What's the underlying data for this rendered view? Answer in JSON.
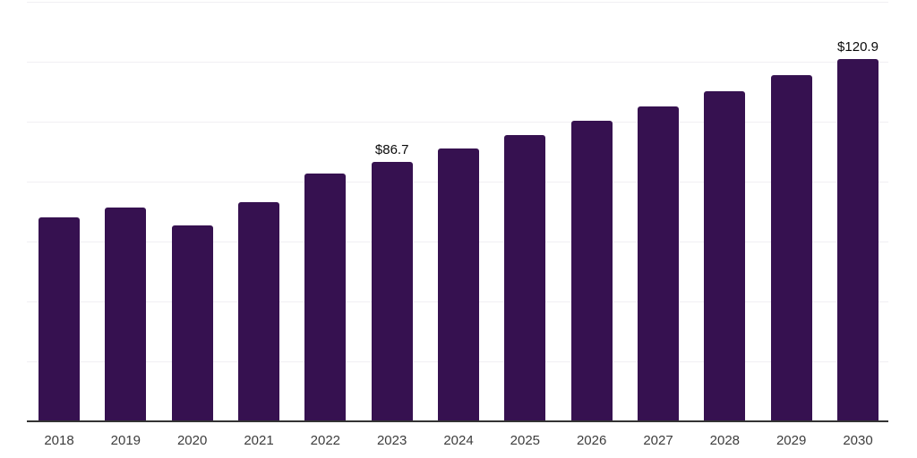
{
  "chart_data": {
    "type": "bar",
    "title": "",
    "xlabel": "",
    "ylabel": "",
    "categories": [
      "2018",
      "2019",
      "2020",
      "2021",
      "2022",
      "2023",
      "2024",
      "2025",
      "2026",
      "2027",
      "2028",
      "2029",
      "2030"
    ],
    "values": [
      68.1,
      71.3,
      65.4,
      73.1,
      82.7,
      86.7,
      91.0,
      95.5,
      100.3,
      105.1,
      110.1,
      115.5,
      120.9
    ],
    "data_labels": [
      null,
      null,
      null,
      null,
      null,
      "$86.7",
      null,
      null,
      null,
      null,
      null,
      null,
      "$120.9"
    ],
    "ylim": [
      0,
      140
    ],
    "gridline_step": 20,
    "grid": true,
    "legend": false
  },
  "colors": {
    "bar": "#361150",
    "gridline": "#f1eff3",
    "axis_line": "#333333",
    "tick_label": "#3d3d3d",
    "data_label": "#0a0a0a",
    "background": "#ffffff"
  }
}
